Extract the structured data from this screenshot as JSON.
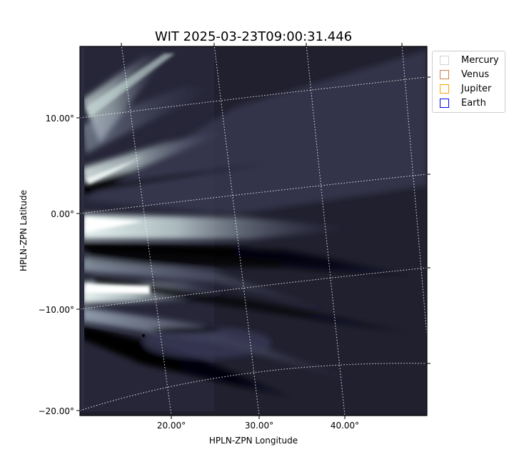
{
  "chart_data": {
    "type": "heatmap",
    "title": "WIT 2025-03-23T09:00:31.446",
    "xlabel": "HPLN-ZPN Longitude",
    "ylabel": "HPLN-ZPN Latitude",
    "x_ticks": [
      "20.00°",
      "30.00°",
      "40.00°"
    ],
    "y_ticks": [
      "10.00°",
      "0.00°",
      "−10.00°",
      "−20.00°"
    ],
    "grid": true,
    "grid_style": "dotted white world-coordinate grid",
    "colormap": "bone",
    "legend_placement": "outside upper-right",
    "legend": [
      {
        "label": "Mercury",
        "color": "#d3d3d3"
      },
      {
        "label": "Venus",
        "color": "#cd7f4a"
      },
      {
        "label": "Jupiter",
        "color": "#ffa500"
      },
      {
        "label": "Earth",
        "color": "#0000ff"
      }
    ]
  }
}
